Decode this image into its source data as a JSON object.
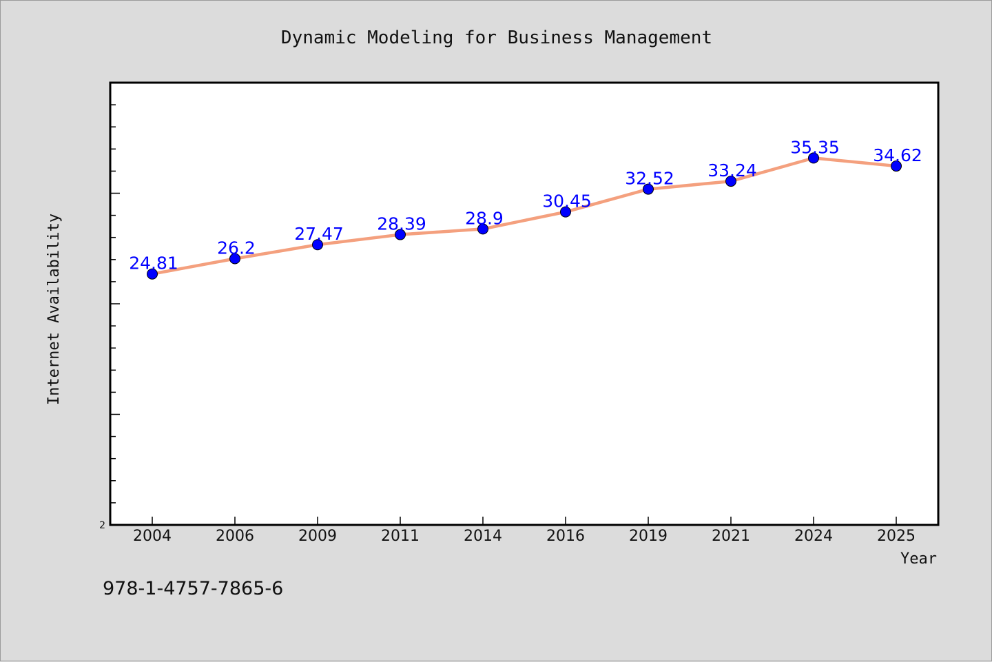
{
  "chart_data": {
    "type": "line",
    "title": "Dynamic Modeling for Business Management",
    "xlabel": "Year",
    "ylabel": "Internet Availability",
    "categories": [
      "2004",
      "2006",
      "2009",
      "2011",
      "2014",
      "2016",
      "2019",
      "2021",
      "2024",
      "2025"
    ],
    "series": [
      {
        "values": [
          24.81,
          26.2,
          27.47,
          28.39,
          28.9,
          30.45,
          32.52,
          33.24,
          35.35,
          34.62
        ],
        "labels": [
          "24.81",
          "26.2",
          "27.47",
          "28.39",
          "28.9",
          "30.45",
          "32.52",
          "33.24",
          "35.35",
          "34.62"
        ],
        "line_color": "#f4a07e",
        "marker_color": "#0000ff"
      }
    ],
    "ylim": [
      2,
      42.2
    ],
    "y_tick_labels": [
      {
        "value": 2,
        "label": "2"
      }
    ],
    "grid": false,
    "legend": "none"
  },
  "footer": {
    "isbn": "978-1-4757-7865-6"
  },
  "colors": {
    "background": "#dcdcdc",
    "plot_background": "#ffffff"
  }
}
